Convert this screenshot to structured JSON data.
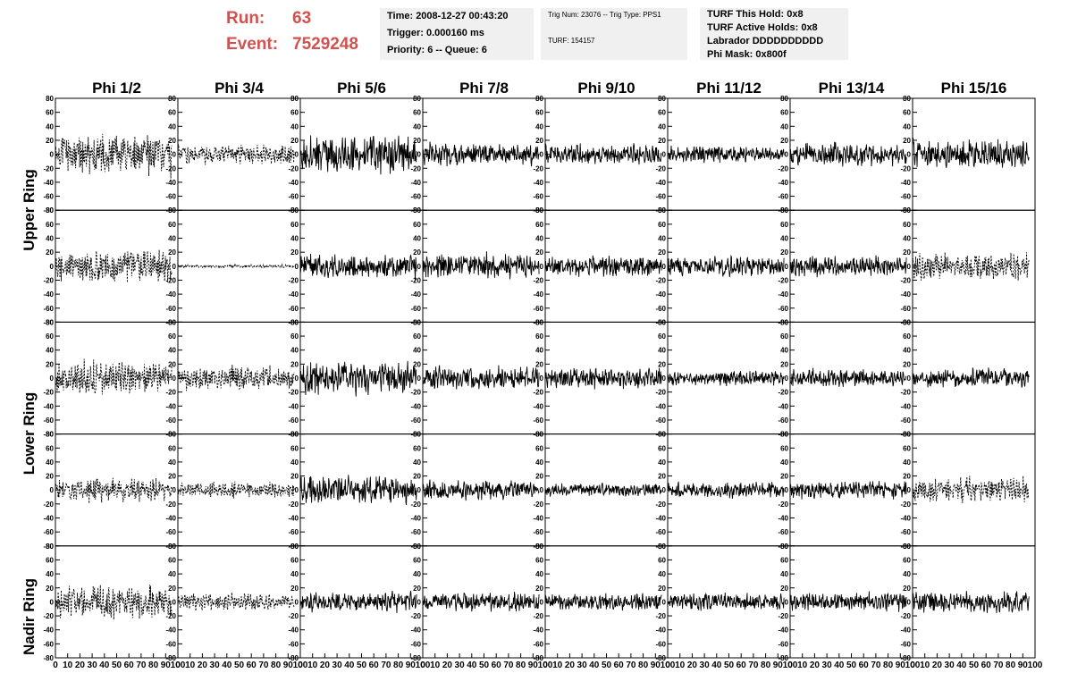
{
  "header": {
    "run_label": "Run:",
    "run_value": "63",
    "event_label": "Event:",
    "event_value": "7529248",
    "time": "Time: 2008-12-27 00:43:20",
    "trigger": "Trigger: 0.000160 ms",
    "priority": "Priority: 6 -- Queue: 6",
    "trig_num": "Trig Num: 23076 -- Trig Type: PPS1",
    "turf": "TURF: 154157",
    "turf_hold": "TURF This Hold: 0x8",
    "turf_active": "TURF Active Holds: 0x8",
    "labrador": "Labrador DDDDDDDDDD",
    "phi_mask": "Phi Mask: 0x800f"
  },
  "chart_data": {
    "type": "line",
    "title": "",
    "columns": [
      "Phi 1/2",
      "Phi 3/4",
      "Phi 5/6",
      "Phi 7/8",
      "Phi 9/10",
      "Phi 11/12",
      "Phi 13/14",
      "Phi 15/16"
    ],
    "row_labels": [
      "Upper Ring",
      "Lower Ring",
      "Nadir Ring"
    ],
    "xlim": [
      0,
      100
    ],
    "ylim": [
      -80,
      80
    ],
    "xticks": [
      "0",
      "10",
      "20",
      "30",
      "40",
      "50",
      "60",
      "70",
      "80",
      "90",
      "100"
    ],
    "yticks": [
      "80",
      "60",
      "40",
      "20",
      "0",
      "-20",
      "-40",
      "-60",
      "-80"
    ],
    "x_samples": 260,
    "x_range_data": [
      0,
      95
    ],
    "line_style_rows": [
      [
        "dashed",
        "dashed",
        "solid",
        "solid",
        "solid",
        "solid",
        "solid",
        "solid"
      ],
      [
        "dashed",
        "dashed",
        "solid",
        "solid",
        "solid",
        "solid",
        "solid",
        "dashed"
      ],
      [
        "dashed",
        "dashed",
        "solid",
        "solid",
        "solid",
        "solid",
        "solid",
        "solid"
      ],
      [
        "dashed",
        "dashed",
        "solid",
        "solid",
        "solid",
        "solid",
        "solid",
        "dashed"
      ],
      [
        "dashed",
        "dashed",
        "solid",
        "solid",
        "solid",
        "solid",
        "solid",
        "solid"
      ]
    ],
    "amplitude_rows": [
      [
        25,
        12,
        22,
        14,
        12,
        10,
        14,
        18
      ],
      [
        20,
        2,
        15,
        15,
        12,
        12,
        12,
        17
      ],
      [
        20,
        15,
        20,
        14,
        13,
        9,
        11,
        11
      ],
      [
        14,
        10,
        18,
        12,
        8,
        10,
        11,
        15
      ],
      [
        20,
        10,
        12,
        11,
        10,
        10,
        11,
        13
      ]
    ]
  }
}
